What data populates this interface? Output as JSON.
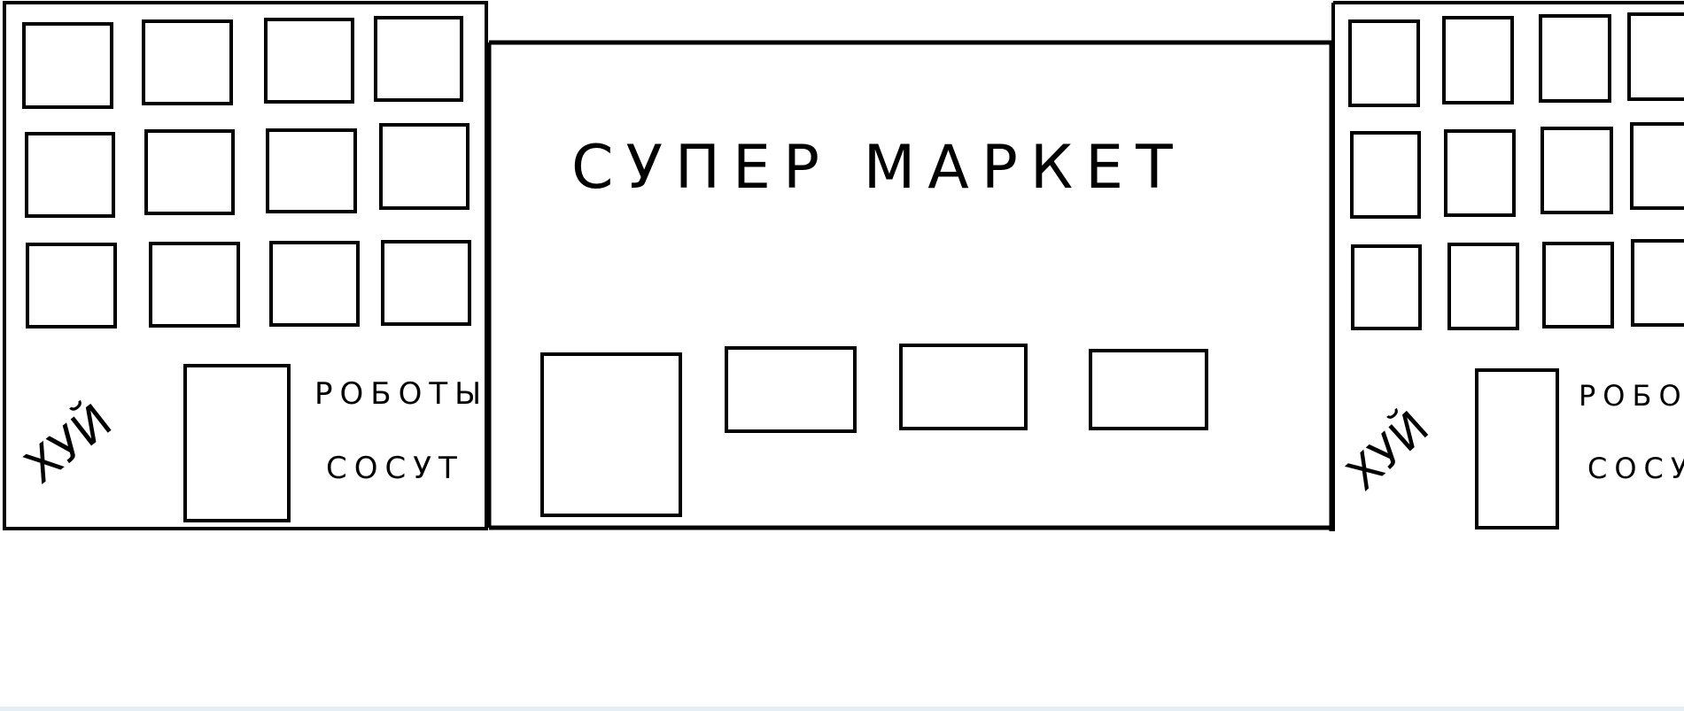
{
  "colors": {
    "ink": "#000000",
    "paper": "#ffffff",
    "bottom_edge": "#e6eef5"
  },
  "sign": {
    "title": "СУПЕР МАРКЕТ"
  },
  "left_building": {
    "graffiti": "ХУЙ",
    "note_line1": "РОБОТЫ",
    "note_line2": "СОСУТ"
  },
  "right_building": {
    "graffiti": "ХУЙ",
    "note_line1": "РОБОТ",
    "note_line2": "СОСУ"
  }
}
